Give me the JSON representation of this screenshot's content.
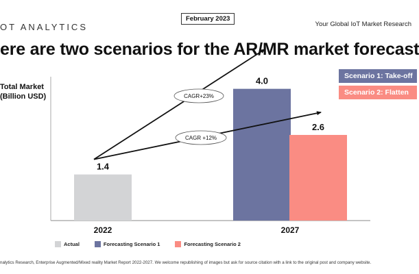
{
  "header": {
    "logo": "OT ANALYTICS",
    "date": "February 2023",
    "tagline": "Your Global IoT Market Research"
  },
  "title": "ere are two scenarios for the AR/MR market forecast",
  "footer": "nalytics Research, Enterprise Augmented/Mixed reality Market Report 2022-2027. We welcome republishing of images but ask for source citation with a link to the original post and company website.",
  "legend_top": {
    "scenario1": "Scenario 1: Take-off",
    "scenario2": "Scenario 2: Flatten"
  },
  "colors": {
    "actual": "#D3D4D6",
    "scenario1": "#6C74A0",
    "scenario2": "#FA8C83"
  },
  "chart_data": {
    "type": "bar",
    "ylabel_line1": "Total Market",
    "ylabel_line2": "(Billion USD)",
    "categories": [
      "2022",
      "2027"
    ],
    "ylim": [
      0,
      4.7
    ],
    "bars": [
      {
        "category": "2022",
        "series": "Actual",
        "value": 1.4,
        "label": "1.4"
      },
      {
        "category": "2027",
        "series": "Forecasting Scenario 1",
        "value": 4.0,
        "label": "4.0"
      },
      {
        "category": "2027",
        "series": "Forecasting Scenario 2",
        "value": 2.6,
        "label": "2.6"
      }
    ],
    "legend": [
      {
        "name": "Actual",
        "color": "#D3D4D6"
      },
      {
        "name": "Forecasting Scenario 1",
        "color": "#6C74A0"
      },
      {
        "name": "Forecasting Scenario 2",
        "color": "#FA8C83"
      }
    ],
    "annotations": [
      {
        "text": "CAGR+23%",
        "from": {
          "category": "2022",
          "value": 1.4
        },
        "to": {
          "category": "2027",
          "value": 4.5
        }
      },
      {
        "text": "CAGR +12%",
        "from": {
          "category": "2022",
          "value": 1.4
        },
        "to": {
          "category": "2027",
          "value": 2.9
        }
      }
    ]
  }
}
